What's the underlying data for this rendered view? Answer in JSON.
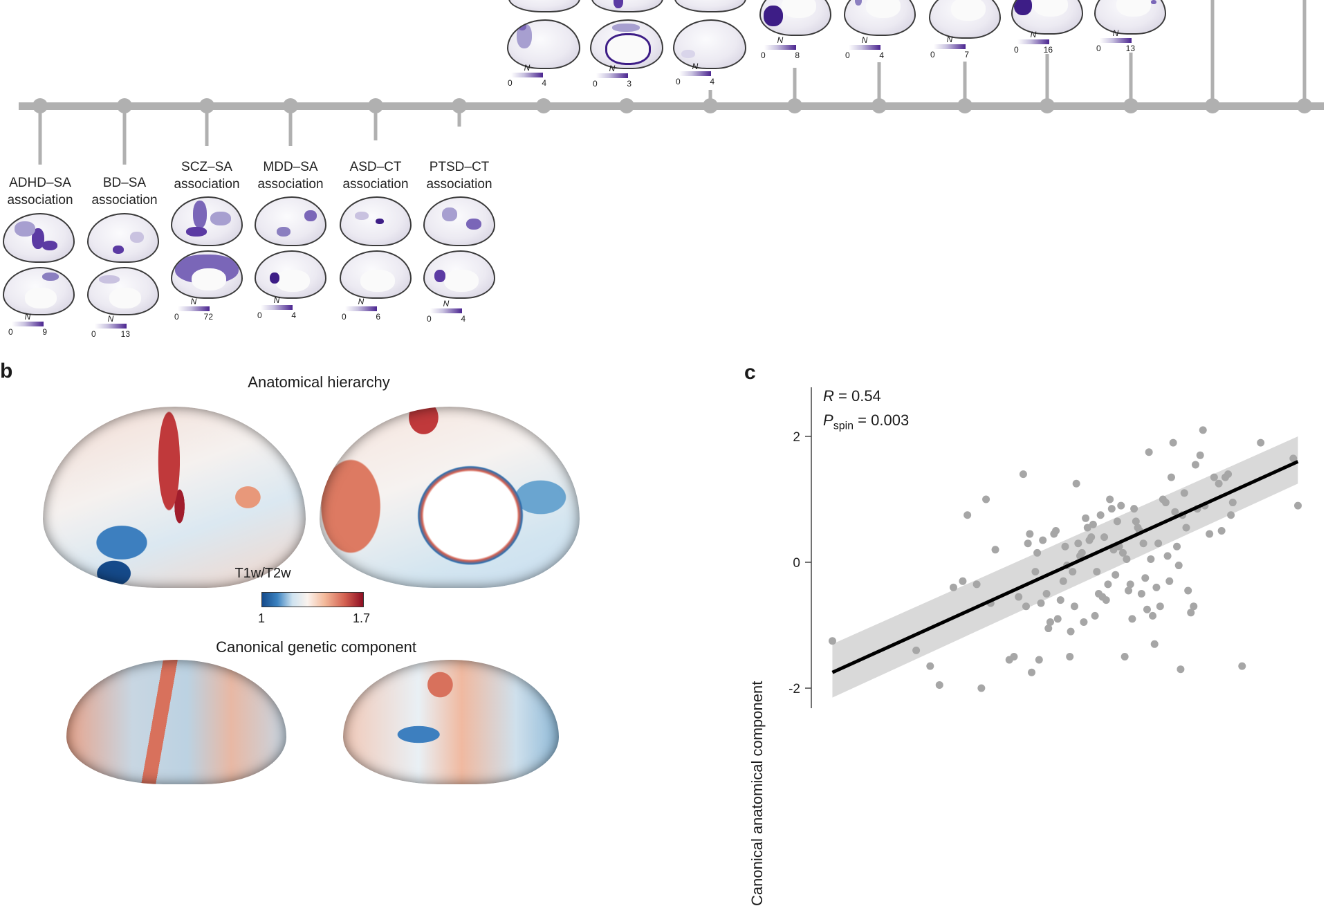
{
  "panel_a": {
    "lower_associations": [
      {
        "line1": "ADHD–SA",
        "line2": "association",
        "legend": {
          "label": "N",
          "min": "0",
          "max": "9"
        }
      },
      {
        "line1": "BD–SA",
        "line2": "association",
        "legend": {
          "label": "N",
          "min": "0",
          "max": "13"
        }
      },
      {
        "line1": "SCZ–SA",
        "line2": "association",
        "legend": {
          "label": "N",
          "min": "0",
          "max": "72"
        }
      },
      {
        "line1": "MDD–SA",
        "line2": "association",
        "legend": {
          "label": "N",
          "min": "0",
          "max": "4"
        }
      },
      {
        "line1": "ASD–CT",
        "line2": "association",
        "legend": {
          "label": "N",
          "min": "0",
          "max": "6"
        }
      },
      {
        "line1": "PTSD–CT",
        "line2": "association",
        "legend": {
          "label": "N",
          "min": "0",
          "max": "4"
        }
      }
    ],
    "upper_legends": [
      {
        "label": "N",
        "min": "0",
        "max": "4"
      },
      {
        "label": "N",
        "min": "0",
        "max": "3"
      },
      {
        "label": "N",
        "min": "0",
        "max": "4"
      },
      {
        "label": "N",
        "min": "0",
        "max": "8"
      },
      {
        "label": "N",
        "min": "0",
        "max": "4"
      },
      {
        "label": "N",
        "min": "0",
        "max": "7"
      },
      {
        "label": "N",
        "min": "0",
        "max": "16"
      },
      {
        "label": "N",
        "min": "0",
        "max": "13"
      }
    ],
    "colors": {
      "timeline": "#b0b0b0",
      "count_high": "#4b2590",
      "count_low": "#ffffff"
    }
  },
  "panel_b": {
    "letter": "b",
    "title_top": "Anatomical hierarchy",
    "colorbar": {
      "label": "T1w/T2w",
      "min": "1",
      "max": "1.7"
    },
    "title_bottom": "Canonical genetic component",
    "colors": {
      "low": "#154a8a",
      "mid": "#fbf3ee",
      "high": "#8e0d22"
    }
  },
  "panel_c": {
    "letter": "c",
    "stat_r_label": "R",
    "stat_r_value": "= 0.54",
    "stat_p_label": "P",
    "stat_p_sub": "spin",
    "stat_p_value": "= 0.003"
  },
  "chart_data": {
    "type": "scatter",
    "title": "",
    "xlabel": "",
    "ylabel": "Canonical anatomical component",
    "ylim": [
      -2.3,
      2.8
    ],
    "xlim": [
      -2.6,
      2.6
    ],
    "yticks": [
      "2",
      "0",
      "-2"
    ],
    "ytick_values": [
      2,
      0,
      -2
    ],
    "grid": false,
    "annotations": [
      "R = 0.54",
      "P_spin = 0.003"
    ],
    "fit": {
      "x": [
        -2.5,
        2.5
      ],
      "y": [
        -1.75,
        1.6
      ],
      "ci_low_end": [
        -2.15,
        1.25
      ],
      "ci_high_end": [
        -1.3,
        2.0
      ]
    },
    "points": [
      [
        -2.5,
        -1.25
      ],
      [
        -1.6,
        -1.4
      ],
      [
        -1.45,
        -1.65
      ],
      [
        -1.35,
        -1.95
      ],
      [
        -1.2,
        -0.4
      ],
      [
        -1.1,
        -0.3
      ],
      [
        -1.05,
        0.75
      ],
      [
        -0.95,
        -0.35
      ],
      [
        -0.9,
        -2.0
      ],
      [
        -0.85,
        1.0
      ],
      [
        -0.8,
        -0.65
      ],
      [
        -0.75,
        0.2
      ],
      [
        -0.6,
        -1.55
      ],
      [
        -0.55,
        -1.5
      ],
      [
        -0.5,
        -0.55
      ],
      [
        -0.45,
        1.4
      ],
      [
        -0.42,
        -0.7
      ],
      [
        -0.4,
        0.3
      ],
      [
        -0.38,
        0.45
      ],
      [
        -0.36,
        -1.75
      ],
      [
        -0.32,
        -0.15
      ],
      [
        -0.3,
        0.15
      ],
      [
        -0.28,
        -1.55
      ],
      [
        -0.26,
        -0.65
      ],
      [
        -0.24,
        0.35
      ],
      [
        -0.2,
        -0.5
      ],
      [
        -0.18,
        -1.05
      ],
      [
        -0.16,
        -0.95
      ],
      [
        -0.12,
        0.45
      ],
      [
        -0.1,
        0.5
      ],
      [
        -0.08,
        -0.9
      ],
      [
        -0.05,
        -0.6
      ],
      [
        -0.02,
        -0.3
      ],
      [
        0.0,
        0.25
      ],
      [
        0.02,
        -0.05
      ],
      [
        0.05,
        -1.5
      ],
      [
        0.06,
        -1.1
      ],
      [
        0.08,
        -0.15
      ],
      [
        0.1,
        -0.7
      ],
      [
        0.12,
        1.25
      ],
      [
        0.14,
        0.3
      ],
      [
        0.16,
        0.1
      ],
      [
        0.18,
        0.15
      ],
      [
        0.2,
        -0.95
      ],
      [
        0.22,
        0.7
      ],
      [
        0.24,
        0.55
      ],
      [
        0.26,
        0.35
      ],
      [
        0.28,
        0.4
      ],
      [
        0.3,
        0.6
      ],
      [
        0.32,
        -0.85
      ],
      [
        0.34,
        -0.15
      ],
      [
        0.36,
        -0.5
      ],
      [
        0.38,
        0.75
      ],
      [
        0.4,
        -0.55
      ],
      [
        0.42,
        0.4
      ],
      [
        0.44,
        -0.6
      ],
      [
        0.46,
        -0.35
      ],
      [
        0.48,
        1.0
      ],
      [
        0.5,
        0.85
      ],
      [
        0.52,
        0.2
      ],
      [
        0.54,
        -0.2
      ],
      [
        0.56,
        0.65
      ],
      [
        0.58,
        0.25
      ],
      [
        0.6,
        0.9
      ],
      [
        0.62,
        0.15
      ],
      [
        0.64,
        -1.5
      ],
      [
        0.66,
        0.05
      ],
      [
        0.68,
        -0.45
      ],
      [
        0.7,
        -0.35
      ],
      [
        0.72,
        -0.9
      ],
      [
        0.74,
        0.85
      ],
      [
        0.76,
        0.65
      ],
      [
        0.78,
        0.55
      ],
      [
        0.8,
        0.5
      ],
      [
        0.82,
        -0.5
      ],
      [
        0.84,
        0.3
      ],
      [
        0.86,
        -0.25
      ],
      [
        0.88,
        -0.75
      ],
      [
        0.9,
        1.75
      ],
      [
        0.92,
        0.05
      ],
      [
        0.94,
        -0.85
      ],
      [
        0.96,
        -1.3
      ],
      [
        0.98,
        -0.4
      ],
      [
        1.0,
        0.3
      ],
      [
        1.02,
        -0.7
      ],
      [
        1.05,
        1.0
      ],
      [
        1.08,
        0.95
      ],
      [
        1.1,
        0.1
      ],
      [
        1.12,
        -0.3
      ],
      [
        1.14,
        1.35
      ],
      [
        1.16,
        1.9
      ],
      [
        1.18,
        0.8
      ],
      [
        1.2,
        0.25
      ],
      [
        1.22,
        -0.05
      ],
      [
        1.24,
        -1.7
      ],
      [
        1.26,
        0.75
      ],
      [
        1.28,
        1.1
      ],
      [
        1.3,
        0.55
      ],
      [
        1.32,
        -0.45
      ],
      [
        1.35,
        -0.8
      ],
      [
        1.38,
        -0.7
      ],
      [
        1.4,
        1.55
      ],
      [
        1.42,
        0.85
      ],
      [
        1.45,
        1.7
      ],
      [
        1.48,
        2.1
      ],
      [
        1.5,
        0.9
      ],
      [
        1.55,
        0.45
      ],
      [
        1.6,
        1.35
      ],
      [
        1.65,
        1.25
      ],
      [
        1.68,
        0.5
      ],
      [
        1.72,
        1.35
      ],
      [
        1.75,
        1.4
      ],
      [
        1.78,
        0.75
      ],
      [
        1.8,
        0.95
      ],
      [
        1.9,
        -1.65
      ],
      [
        2.1,
        1.9
      ],
      [
        2.45,
        1.65
      ],
      [
        2.5,
        0.9
      ]
    ]
  }
}
